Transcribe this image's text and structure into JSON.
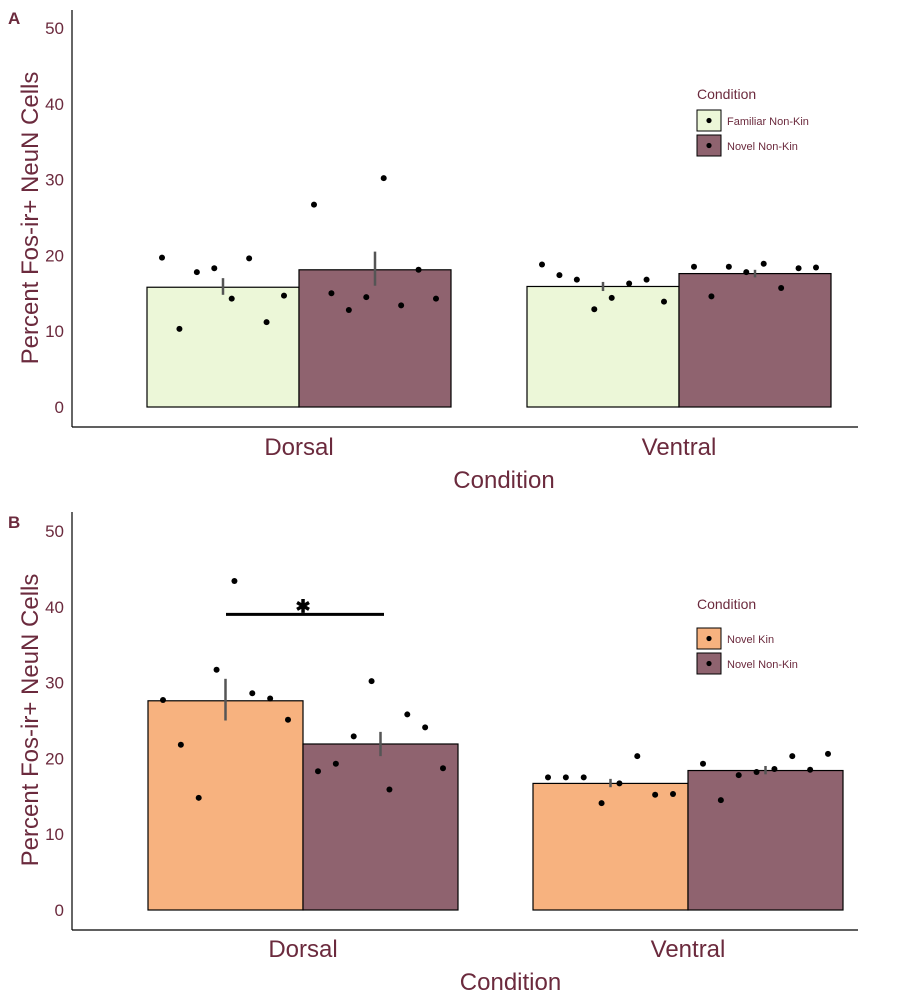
{
  "colors": {
    "text": "#6b2a3d",
    "familiar_non_kin": "#ecf7d8",
    "novel_non_kin": "#8f636f",
    "novel_kin": "#f7b27f",
    "axis": "#000000",
    "error_bar": "#555555",
    "point": "#000000"
  },
  "chart_data": [
    {
      "panel_label": "A",
      "type": "bar",
      "ylabel": "Percent Fos-ir+ NeuN Cells",
      "xlabel": "Condition",
      "ylim": [
        0,
        50
      ],
      "yticks": [
        "0",
        "10",
        "20",
        "30",
        "40",
        "50"
      ],
      "categories": [
        "Dorsal",
        "Ventral"
      ],
      "legend": {
        "title": "Condition",
        "position": "top-right"
      },
      "grid": false,
      "series": [
        {
          "name": "Familiar Non-Kin",
          "color_key": "familiar_non_kin",
          "values": [
            15.8,
            15.9
          ],
          "errors": [
            [
              14.8,
              17.0
            ],
            [
              15.3,
              16.5
            ]
          ],
          "points": [
            [
              19.7,
              10.3,
              17.8,
              18.3,
              14.3,
              19.6,
              11.2,
              14.7
            ],
            [
              18.8,
              17.4,
              16.8,
              12.9,
              14.4,
              16.3,
              16.8,
              13.9
            ]
          ]
        },
        {
          "name": "Novel Non-Kin",
          "color_key": "novel_non_kin",
          "values": [
            18.1,
            17.6
          ],
          "errors": [
            [
              16.0,
              20.5
            ],
            [
              17.1,
              18.1
            ]
          ],
          "points": [
            [
              26.7,
              15.0,
              12.8,
              14.5,
              30.2,
              13.4,
              18.1,
              14.3
            ],
            [
              18.5,
              14.6,
              18.5,
              17.8,
              18.9,
              15.7,
              18.3,
              18.4
            ]
          ]
        }
      ]
    },
    {
      "panel_label": "B",
      "type": "bar",
      "ylabel": "Percent Fos-ir+ NeuN Cells",
      "xlabel": "Condition",
      "ylim": [
        0,
        50
      ],
      "yticks": [
        "0",
        "10",
        "20",
        "30",
        "40",
        "50"
      ],
      "categories": [
        "Dorsal",
        "Ventral"
      ],
      "legend": {
        "title": "Condition",
        "position": "top-right"
      },
      "grid": false,
      "significance": {
        "category": "Dorsal",
        "y": 39,
        "label": "✱"
      },
      "series": [
        {
          "name": "Novel Kin",
          "color_key": "novel_kin",
          "values": [
            27.6,
            16.7
          ],
          "errors": [
            [
              25.0,
              30.5
            ],
            [
              16.2,
              17.3
            ]
          ],
          "points": [
            [
              27.7,
              21.8,
              14.8,
              31.7,
              43.4,
              28.6,
              27.9,
              25.1
            ],
            [
              17.5,
              17.5,
              17.5,
              14.1,
              16.7,
              20.3,
              15.2,
              15.3
            ]
          ]
        },
        {
          "name": "Novel Non-Kin",
          "color_key": "novel_non_kin",
          "values": [
            21.9,
            18.4
          ],
          "errors": [
            [
              20.3,
              23.5
            ],
            [
              17.9,
              19.0
            ]
          ],
          "points": [
            [
              18.3,
              19.3,
              22.9,
              30.2,
              15.9,
              25.8,
              24.1,
              18.7
            ],
            [
              19.3,
              14.5,
              17.8,
              18.2,
              18.6,
              20.3,
              18.5,
              20.6
            ]
          ]
        }
      ]
    }
  ]
}
